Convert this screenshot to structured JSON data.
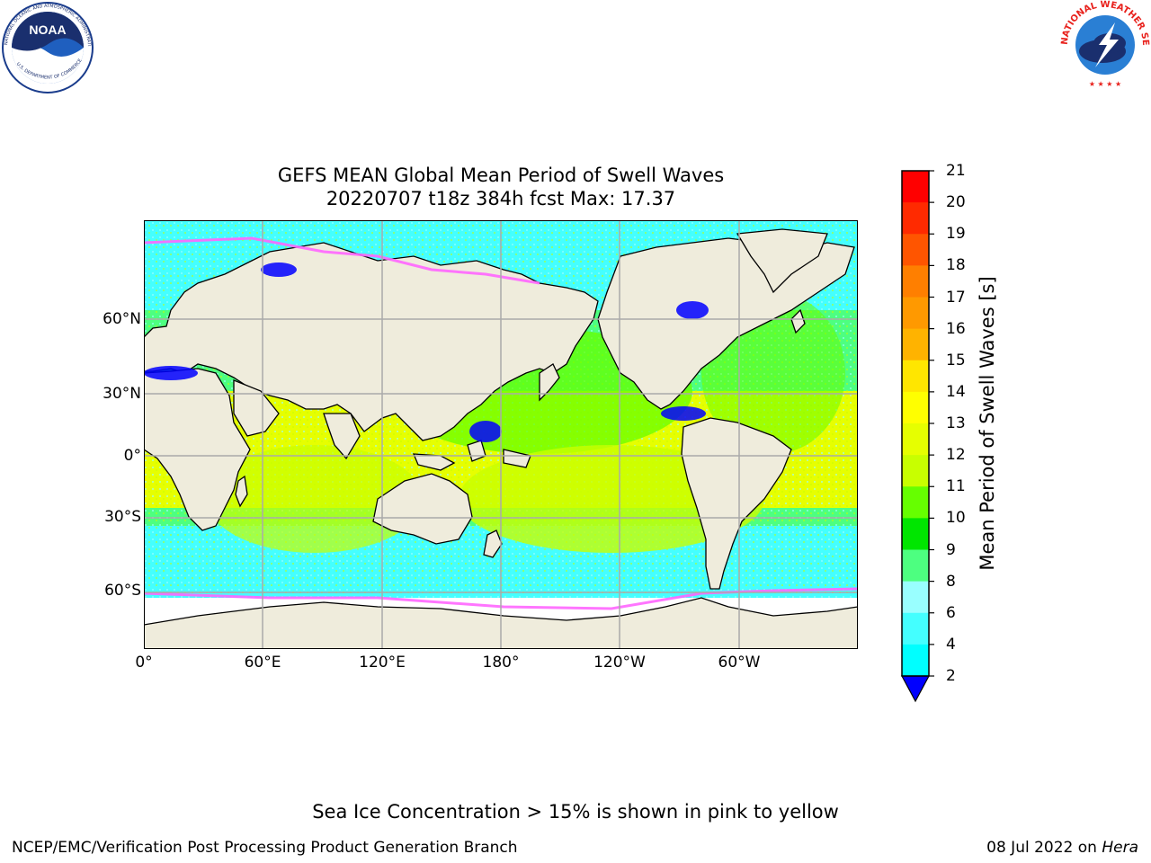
{
  "header": {
    "title_line1": "GEFS MEAN Global Mean Period of Swell Waves",
    "title_line2": "20220707 t18z 384h fcst   Max: 17.37"
  },
  "logos": {
    "noaa": {
      "text": "NOAA",
      "ring_text": "NATIONAL OCEANIC AND ATMOSPHERIC ADMINISTRATION",
      "bottom_text": "U.S. DEPARTMENT OF COMMERCE"
    },
    "nws": {
      "ring_text": "NATIONAL WEATHER SERVICE"
    }
  },
  "map": {
    "lat_labels": [
      "60°N",
      "30°N",
      "0°",
      "30°S",
      "60°S"
    ],
    "lon_labels": [
      "0°",
      "60°E",
      "120°E",
      "180°",
      "120°W",
      "60°W"
    ],
    "land_color": "#efecdc",
    "ice_note_color": "#ff66ff"
  },
  "colorbar": {
    "label": "Mean Period of Swell Waves [s]",
    "ticks": [
      "21",
      "20",
      "19",
      "18",
      "17",
      "16",
      "15",
      "14",
      "13",
      "12",
      "11",
      "10",
      "9",
      "8",
      "6",
      "4",
      "2"
    ],
    "colors": [
      "#ff0000",
      "#ff2a00",
      "#ff5500",
      "#ff7f00",
      "#ff9900",
      "#ffb300",
      "#ffe600",
      "#ffff00",
      "#e6ff00",
      "#c8ff00",
      "#66ff00",
      "#00e600",
      "#4dff80",
      "#99ffff",
      "#44ffff",
      "#00ffff",
      "#0099ff",
      "#0000ff"
    ]
  },
  "footer": {
    "note": "Sea Ice Concentration > 15% is shown in pink to yellow",
    "left": "NCEP/EMC/Verification Post Processing Product Generation Branch",
    "date": "08 Jul 2022 on",
    "host": "Hera"
  }
}
